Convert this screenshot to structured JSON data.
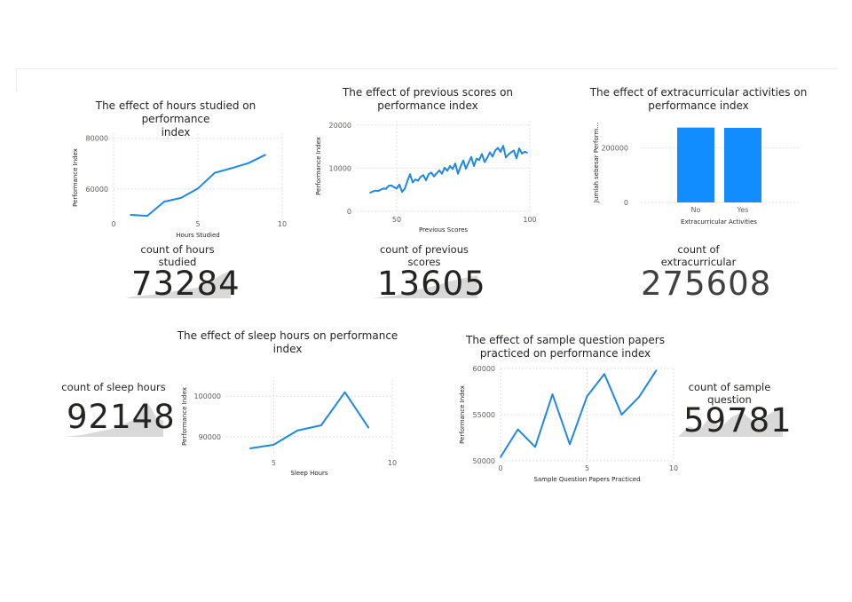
{
  "colors": {
    "series": "#1f88e5",
    "bar": "#118dff",
    "grid": "#e1dfdd",
    "spark": "#d9d9d9"
  },
  "cards": {
    "hours": {
      "label1": "count of hours",
      "label2": "studied",
      "value": "73284"
    },
    "previous": {
      "label1": "count of previous",
      "label2": "scores",
      "value": "13605"
    },
    "extra": {
      "label1": "count of",
      "label2": "extracurricular",
      "value": "275608"
    },
    "sleep": {
      "label1": "count of sleep hours",
      "value": "92148"
    },
    "sample": {
      "label1": "count of sample",
      "label2": "question",
      "value": "59781"
    }
  },
  "chart_data": [
    {
      "id": "hours",
      "type": "line",
      "title": "The effect of hours studied on performance index",
      "title_lines": [
        "The effect of hours studied on performance",
        "index"
      ],
      "xlabel": "Hours Studied",
      "ylabel": "Performance Index",
      "xlim": [
        0,
        10
      ],
      "ylim": [
        47000,
        82000
      ],
      "xticks": [
        "0",
        "5",
        "10"
      ],
      "yticks": [
        "60000",
        "80000"
      ],
      "grid": true,
      "x": [
        1,
        2,
        3,
        4,
        5,
        6,
        7,
        8,
        9
      ],
      "y": [
        49800,
        49400,
        55000,
        56500,
        60200,
        66400,
        68200,
        70200,
        73500
      ]
    },
    {
      "id": "previous",
      "type": "line",
      "title": "The effect of previous scores on performance index",
      "title_lines": [
        "The effect of previous scores on",
        "performance index"
      ],
      "xlabel": "Previous Scores",
      "ylabel": "Performance Index",
      "xlim": [
        35,
        100
      ],
      "ylim": [
        0,
        21000
      ],
      "xticks": [
        "50",
        "100"
      ],
      "yticks": [
        "0",
        "10000",
        "20000"
      ],
      "grid": true,
      "x": [
        40,
        41,
        42,
        43,
        44,
        45,
        46,
        47,
        48,
        49,
        50,
        51,
        52,
        53,
        54,
        55,
        56,
        57,
        58,
        59,
        60,
        61,
        62,
        63,
        64,
        65,
        66,
        67,
        68,
        69,
        70,
        71,
        72,
        73,
        74,
        75,
        76,
        77,
        78,
        79,
        80,
        81,
        82,
        83,
        84,
        85,
        86,
        87,
        88,
        89,
        90,
        91,
        92,
        93,
        94,
        95,
        96,
        97,
        98,
        99
      ],
      "y": [
        4300,
        4600,
        4800,
        4700,
        5000,
        5300,
        5200,
        5900,
        6000,
        5600,
        5300,
        6200,
        4500,
        5200,
        7000,
        8600,
        6700,
        7400,
        7100,
        8000,
        8400,
        7200,
        8600,
        9000,
        8100,
        8800,
        9500,
        8700,
        10100,
        9400,
        10500,
        9800,
        11100,
        8700,
        10400,
        11800,
        9900,
        11300,
        12600,
        10500,
        12200,
        11900,
        13300,
        11400,
        12400,
        13700,
        12700,
        14100,
        14700,
        13800,
        15200,
        12500,
        13200,
        13700,
        14100,
        12300,
        14600,
        13400,
        13800,
        13600
      ]
    },
    {
      "id": "extra",
      "type": "bar",
      "title": "The effect of extracurricular activities on performance index",
      "title_lines": [
        "The effect of extracurricular activities on",
        "performance index"
      ],
      "xlabel": "Extracurricular Activities",
      "ylabel": "Jumlah sebesar Perform...",
      "categories": [
        "No",
        "Yes"
      ],
      "values": [
        275000,
        274000
      ],
      "ylim": [
        0,
        300000
      ],
      "yticks": [
        "0",
        "200000"
      ],
      "grid": true
    },
    {
      "id": "sleep",
      "type": "line",
      "title": "The effect of sleep hours on performance index",
      "title_lines": [
        "The effect of sleep hours on performance",
        "index"
      ],
      "xlabel": "Sleep Hours",
      "ylabel": "Performance Index",
      "xlim": [
        3,
        10
      ],
      "ylim": [
        86000,
        104000
      ],
      "xticks": [
        "5",
        "10"
      ],
      "yticks": [
        "90000",
        "100000"
      ],
      "grid": true,
      "x": [
        4,
        5,
        6,
        7,
        8,
        9
      ],
      "y": [
        87100,
        88000,
        91500,
        92800,
        101000,
        92200
      ]
    },
    {
      "id": "sample",
      "type": "line",
      "title": "The effect of sample question papers practiced on performance index",
      "title_lines": [
        "The effect of sample question papers",
        "practiced on performance index"
      ],
      "xlabel": "Sample Question Papers Practiced",
      "ylabel": "Performance Index",
      "xlim": [
        0,
        10
      ],
      "ylim": [
        50000,
        60000
      ],
      "xticks": [
        "0",
        "5",
        "10"
      ],
      "yticks": [
        "50000",
        "55000",
        "60000"
      ],
      "grid": true,
      "x": [
        0,
        1,
        2,
        3,
        4,
        5,
        6,
        7,
        8,
        9
      ],
      "y": [
        50400,
        53400,
        51500,
        57200,
        51800,
        57000,
        59400,
        55000,
        56900,
        59800
      ]
    }
  ]
}
